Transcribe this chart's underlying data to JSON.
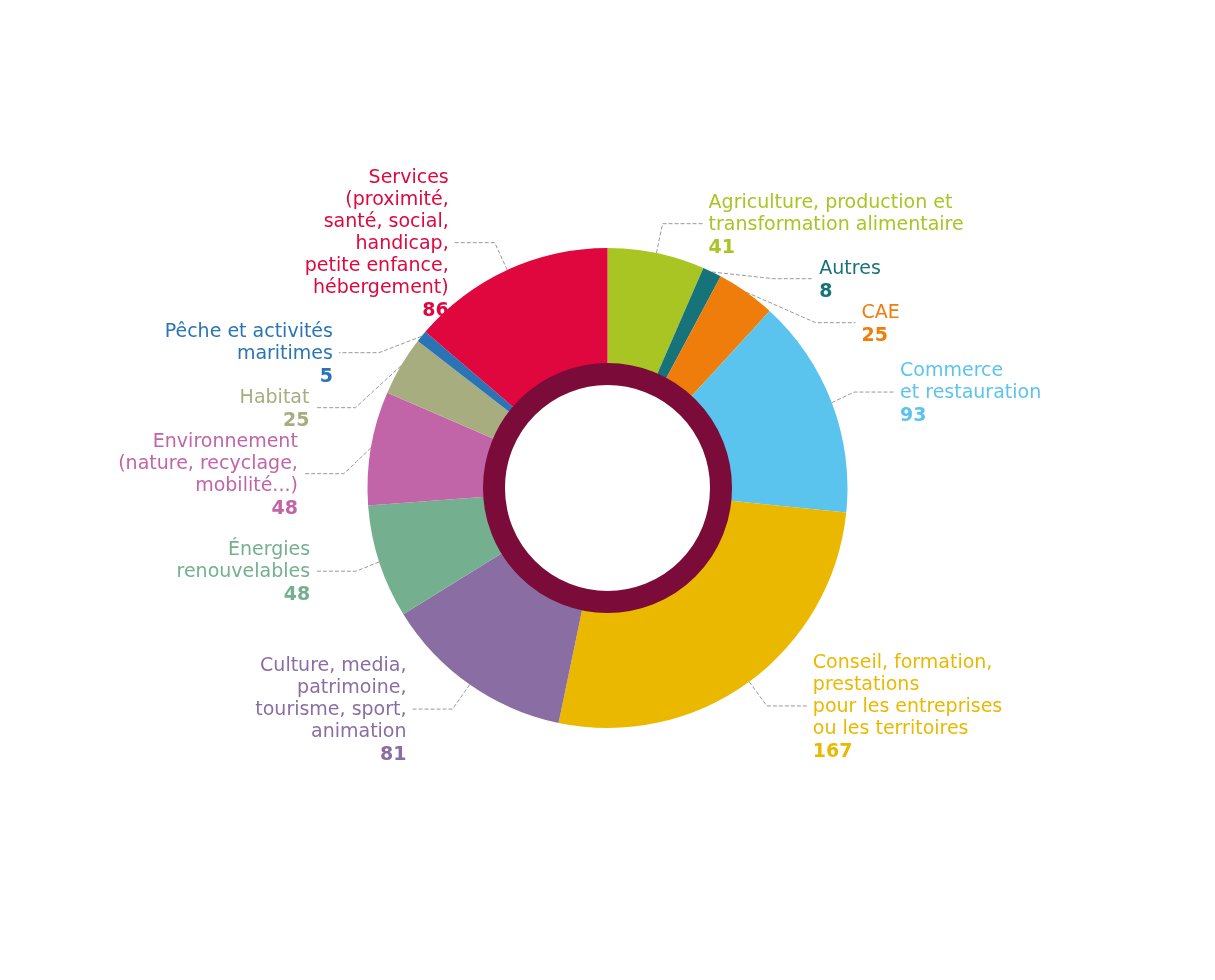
{
  "chart_data": {
    "type": "donut",
    "categories": [
      "Agriculture, production et\ntransformation alimentaire",
      "Autres",
      "CAE",
      "Commerce\net restauration",
      "Conseil, formation,\nprestations\npour les entreprises\nou les territoires",
      "Culture, media,\npatrimoine,\ntourisme, sport,\nanimation",
      "Énergies\nrenouvelables",
      "Environnement\n(nature, recyclage,\nmobilité...)",
      "Habitat",
      "Pêche et activités\nmaritimes",
      "Services\n(proximité,\nsanté, social,\nhandicap,\npetite enfance,\nhébergement)"
    ],
    "values": [
      41,
      8,
      25,
      93,
      167,
      81,
      48,
      48,
      25,
      5,
      86
    ],
    "colors": [
      "#a8c523",
      "#17737a",
      "#ee7d0b",
      "#5bc4ee",
      "#ebb800",
      "#8a6ea3",
      "#74b08f",
      "#c265a8",
      "#a8ad80",
      "#2a74b5",
      "#e0073f"
    ],
    "data_labels": true,
    "legend": false
  }
}
